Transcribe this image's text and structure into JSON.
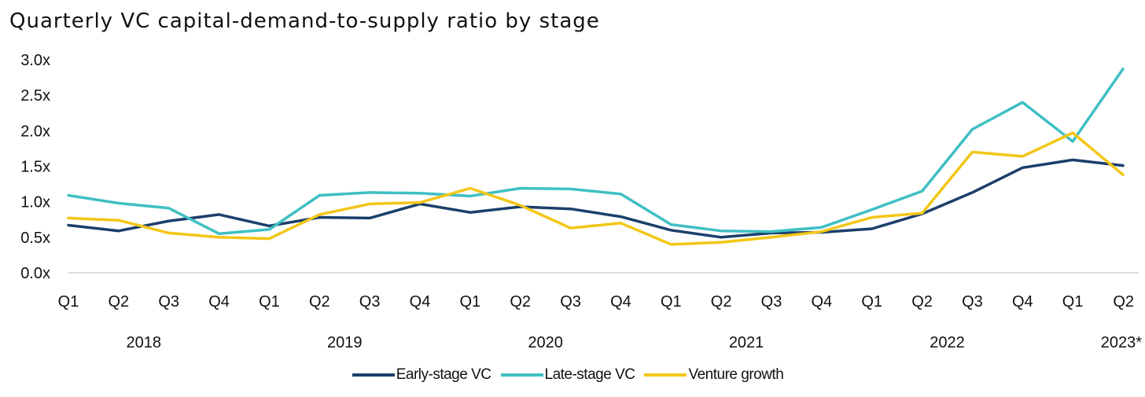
{
  "chart_data": {
    "type": "line",
    "title": "Quarterly VC capital-demand-to-supply ratio by stage",
    "xlabel": "",
    "ylabel": "",
    "ylim": [
      0,
      3
    ],
    "yticks": [
      "0.0x",
      "0.5x",
      "1.0x",
      "1.5x",
      "2.0x",
      "2.5x",
      "3.0x"
    ],
    "quarters": [
      "Q1",
      "Q2",
      "Q3",
      "Q4",
      "Q1",
      "Q2",
      "Q3",
      "Q4",
      "Q1",
      "Q2",
      "Q3",
      "Q4",
      "Q1",
      "Q2",
      "Q3",
      "Q4",
      "Q1",
      "Q2",
      "Q3",
      "Q4",
      "Q1",
      "Q2"
    ],
    "years": [
      {
        "label": "2018",
        "quarters": 4
      },
      {
        "label": "2019",
        "quarters": 4
      },
      {
        "label": "2020",
        "quarters": 4
      },
      {
        "label": "2021",
        "quarters": 4
      },
      {
        "label": "2022",
        "quarters": 4
      },
      {
        "label": "2023*",
        "quarters": 2
      }
    ],
    "series": [
      {
        "name": "Early-stage VC",
        "color": "#1b3f6b",
        "values": [
          0.67,
          0.59,
          0.73,
          0.82,
          0.66,
          0.78,
          0.77,
          0.97,
          0.85,
          0.93,
          0.9,
          0.79,
          0.6,
          0.5,
          0.56,
          0.57,
          0.62,
          0.83,
          1.13,
          1.48,
          1.59,
          1.51
        ]
      },
      {
        "name": "Late-stage VC",
        "color": "#3fbfc4",
        "values": [
          1.09,
          0.98,
          0.91,
          0.55,
          0.61,
          1.09,
          1.13,
          1.12,
          1.08,
          1.19,
          1.18,
          1.11,
          0.68,
          0.59,
          0.58,
          0.64,
          0.89,
          1.15,
          2.02,
          2.4,
          1.85,
          2.87
        ]
      },
      {
        "name": "Venture growth",
        "color": "#f3c617",
        "values": [
          0.77,
          0.74,
          0.56,
          0.5,
          0.48,
          0.82,
          0.97,
          0.99,
          1.19,
          0.95,
          0.63,
          0.7,
          0.4,
          0.43,
          0.5,
          0.58,
          0.78,
          0.84,
          1.7,
          1.64,
          1.97,
          1.38
        ]
      }
    ],
    "legend_position": "bottom",
    "grid": false
  }
}
